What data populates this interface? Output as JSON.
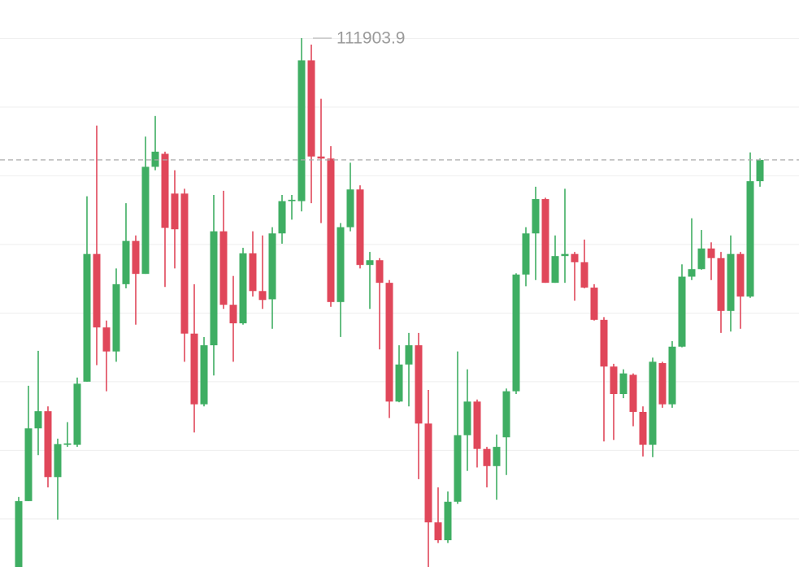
{
  "chart_data": {
    "type": "candlestick",
    "up_color": "#3fae63",
    "down_color": "#e0475a",
    "grid": true,
    "ylim": [
      104200,
      112460
    ],
    "yticks": [
      111900,
      110900,
      109900,
      108900,
      107900,
      106900,
      105900,
      104900
    ],
    "open": [
      104200,
      105160,
      106220,
      106470,
      105510,
      105980,
      105980,
      106900,
      108760,
      107690,
      107340,
      108320,
      108950,
      108470,
      110030,
      110220,
      109640,
      109640,
      107600,
      106570,
      107430,
      109090,
      108020,
      107750,
      108770,
      108220,
      108100,
      109060,
      109530,
      109530,
      111580,
      110180,
      110150,
      108060,
      109150,
      109700,
      108600,
      108670,
      108340,
      106610,
      107150,
      107430,
      106290,
      104850,
      104590,
      105150,
      106120,
      106610,
      105920,
      105670,
      106090,
      106760,
      108460,
      109060,
      109560,
      108340,
      108730,
      108760,
      108640,
      108270,
      107800,
      107120,
      106720,
      107000,
      106460,
      105980,
      107170,
      106570,
      107410,
      108430,
      108540,
      108840,
      108700,
      107930,
      108760,
      108140,
      109820
    ],
    "high": [
      105220,
      106840,
      107350,
      106540,
      106070,
      106310,
      106960,
      109600,
      110630,
      107790,
      108550,
      109500,
      109030,
      110470,
      110770,
      110250,
      109980,
      109710,
      108320,
      107550,
      109620,
      109680,
      108440,
      108850,
      109090,
      109030,
      109150,
      109620,
      109620,
      111903.9,
      111810,
      111020,
      110330,
      109210,
      110090,
      109760,
      108790,
      108700,
      108380,
      107430,
      107610,
      107610,
      106780,
      105360,
      105300,
      107340,
      107080,
      106640,
      105950,
      106130,
      106800,
      108480,
      109150,
      109740,
      109580,
      109030,
      109710,
      108790,
      108970,
      108320,
      107840,
      107160,
      107080,
      107020,
      106540,
      107250,
      107190,
      107490,
      108610,
      109280,
      109110,
      108930,
      108790,
      109030,
      108790,
      110240,
      110150
    ],
    "low": [
      104200,
      105160,
      105830,
      105360,
      104890,
      105950,
      105950,
      106900,
      107140,
      106760,
      107190,
      108260,
      107730,
      108470,
      109980,
      108280,
      108550,
      107190,
      106160,
      106540,
      106990,
      107960,
      107190,
      107730,
      108140,
      107960,
      107670,
      108910,
      109260,
      109380,
      109500,
      109210,
      107990,
      107550,
      109090,
      108550,
      107960,
      107370,
      106370,
      106600,
      106540,
      105480,
      104200,
      104550,
      104550,
      105120,
      105600,
      105650,
      105360,
      105180,
      105540,
      106720,
      108290,
      108380,
      108340,
      108340,
      108340,
      108080,
      108260,
      107790,
      106030,
      106050,
      106660,
      106250,
      105810,
      105800,
      106520,
      106520,
      107400,
      108380,
      108530,
      108380,
      107610,
      107630,
      107670,
      108120,
      109740
    ],
    "close": [
      105160,
      106220,
      106470,
      105510,
      105990,
      106000,
      106870,
      108760,
      107690,
      107340,
      108320,
      108950,
      108470,
      110030,
      110250,
      109140,
      109120,
      107600,
      106570,
      107430,
      109090,
      108020,
      107750,
      108770,
      108220,
      108090,
      109060,
      109530,
      109550,
      111580,
      110180,
      110150,
      108060,
      109150,
      109700,
      108600,
      108670,
      108340,
      106610,
      107150,
      107430,
      106290,
      104850,
      104590,
      105150,
      106120,
      106610,
      105920,
      105670,
      105950,
      106760,
      108460,
      109060,
      109560,
      108340,
      108730,
      108760,
      108640,
      108270,
      107800,
      107120,
      106720,
      107020,
      106460,
      105980,
      107190,
      106570,
      107410,
      108430,
      108540,
      108840,
      108700,
      107930,
      108760,
      108140,
      109820,
      110130
    ]
  }
}
